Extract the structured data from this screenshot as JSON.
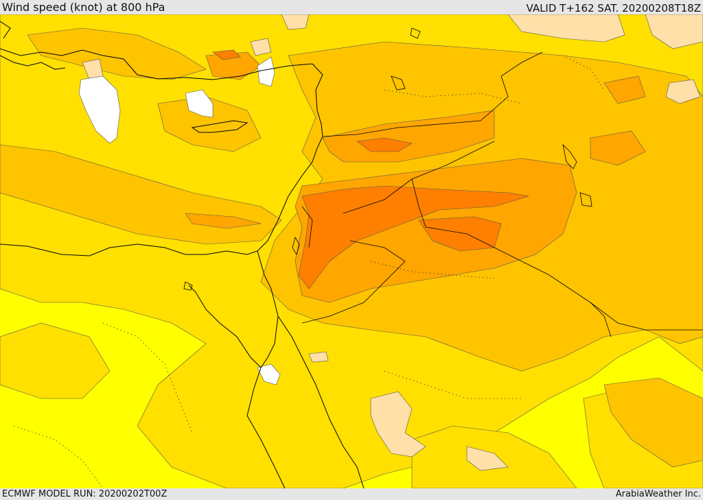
{
  "header": {
    "title": "Wind speed (knot) at 800 hPa",
    "valid": "VALID T+162 SAT. 20200208T18Z"
  },
  "footer": {
    "model_run": "ECMWF MODEL RUN: 20200202T00Z",
    "credit": "ArabiaWeather Inc."
  },
  "colors": {
    "level_1": "#ffff00",
    "level_2": "#ffe000",
    "level_3": "#ffc400",
    "level_4": "#ffa600",
    "level_5": "#ff8000",
    "low_speed": "#ffe0a8",
    "calm": "#ffffff",
    "frame": "#e6e6e6"
  }
}
